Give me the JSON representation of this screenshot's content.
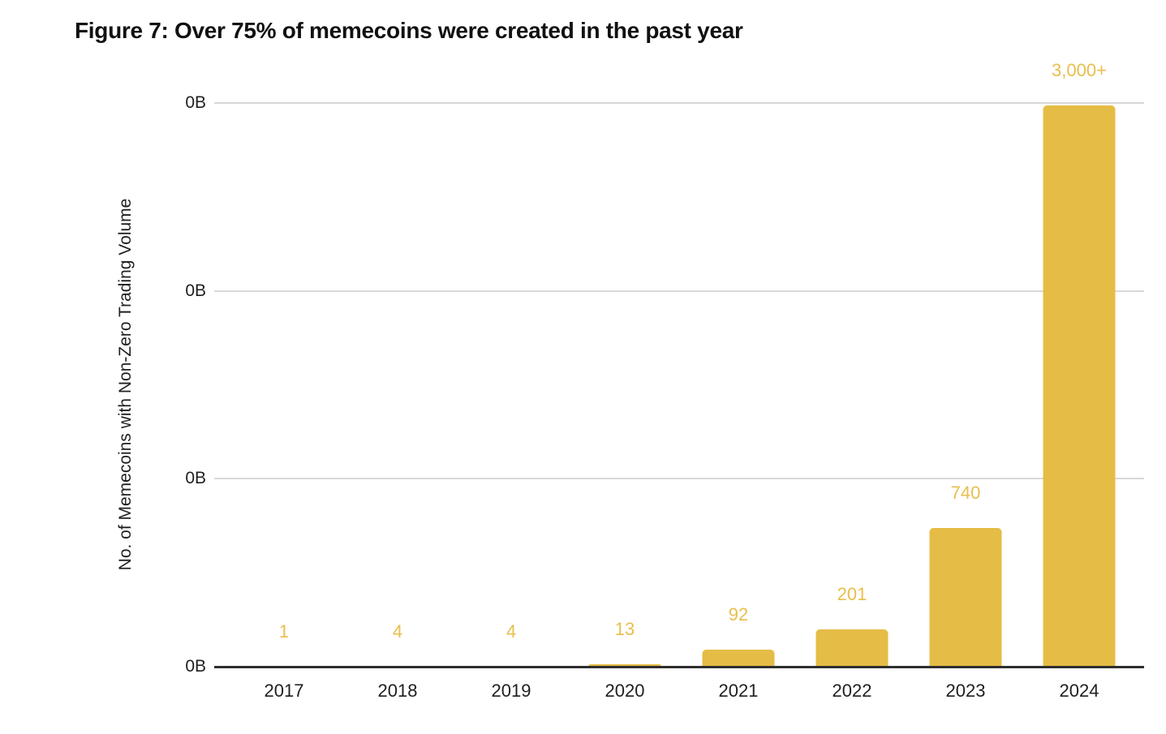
{
  "title": "Figure 7: Over 75% of memecoins were created in the past year",
  "chart_data": {
    "type": "bar",
    "title": "Figure 7: Over 75% of memecoins were created in the past year",
    "categories": [
      "2017",
      "2018",
      "2019",
      "2020",
      "2021",
      "2022",
      "2023",
      "2024"
    ],
    "values": [
      1,
      4,
      4,
      13,
      92,
      201,
      740,
      3000
    ],
    "value_labels": [
      "1",
      "4",
      "4",
      "13",
      "92",
      "201",
      "740",
      "3,000+"
    ],
    "xlabel": "",
    "ylabel": "No. of Memecoins with Non-Zero Trading Volume",
    "y_ticks": [
      "0B",
      "0B",
      "0B",
      "0B"
    ],
    "ylim": [
      0,
      3013
    ],
    "grid": "horizontal-light-gray",
    "legend": "none",
    "bar_color": "#e5bc45",
    "value_label_color": "#e9be4b",
    "gridline_color": "#d8d8d8",
    "axis_line_color": "#2f2f2f",
    "text_color": "#1f1f1f"
  }
}
